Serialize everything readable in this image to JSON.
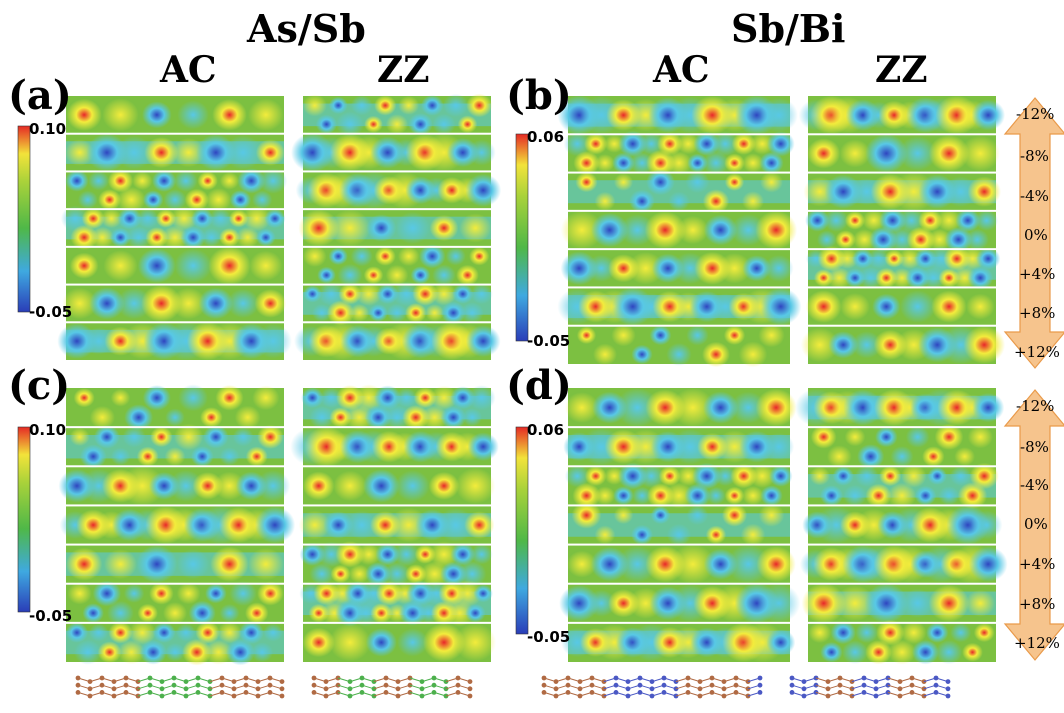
{
  "titles": {
    "left": "As/Sb",
    "right": "Sb/Bi",
    "ac_left": "AC",
    "zz_left": "ZZ",
    "ac_right": "AC",
    "zz_right": "ZZ"
  },
  "panels": {
    "a": "(a)",
    "b": "(b)",
    "c": "(c)",
    "d": "(d)"
  },
  "colorbars": {
    "left_max": "0.10",
    "left_min": "-0.05",
    "right_max": "0.06",
    "right_min": "-0.05"
  },
  "strains": [
    "-12%",
    "-8%",
    "-4%",
    "0%",
    "+4%",
    "+8%",
    "+12%"
  ],
  "colors": {
    "map_bg": "#7cc041",
    "high": "#e8262a",
    "mid": "#f3ec3c",
    "low": "#3553c8",
    "cyan": "#58c8e6",
    "arrow": "#f6c48d",
    "arrow_edge": "#e99a4a",
    "atom_brown": "#b06a43",
    "atom_green": "#4cb04c",
    "atom_blue": "#4a58c4"
  }
}
